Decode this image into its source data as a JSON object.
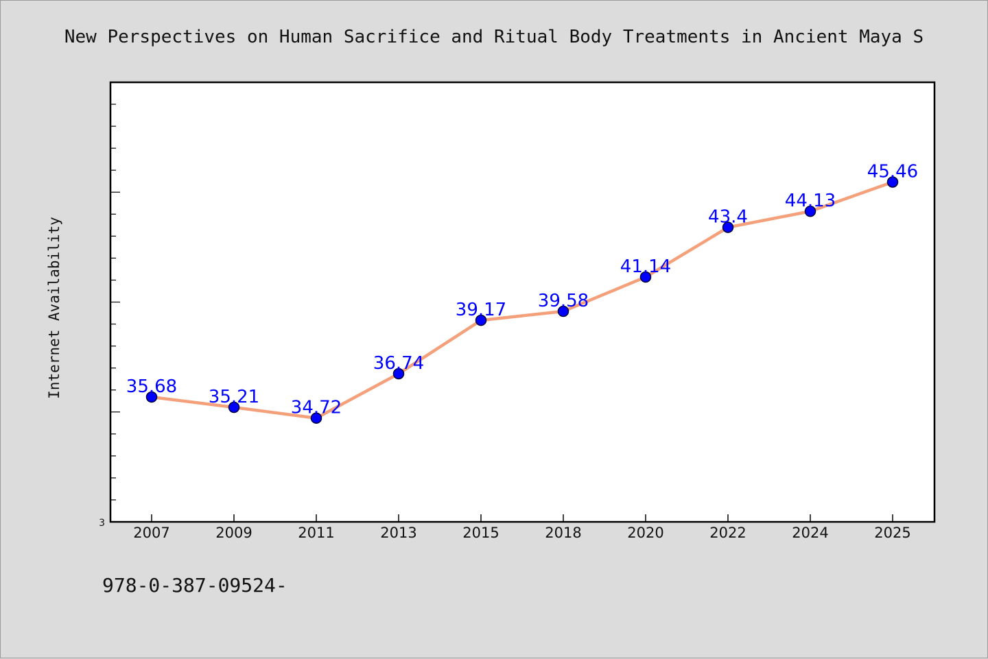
{
  "chart_data": {
    "type": "line",
    "title": "New Perspectives on Human Sacrifice and Ritual Body Treatments in Ancient Maya S",
    "ylabel": "Internet Availability",
    "xlabel": "",
    "categories": [
      "2007",
      "2009",
      "2011",
      "2013",
      "2015",
      "2018",
      "2020",
      "2022",
      "2024",
      "2025"
    ],
    "series": [
      {
        "values": [
          35.68,
          35.21,
          34.72,
          36.74,
          39.17,
          39.58,
          41.14,
          43.4,
          44.13,
          45.46
        ],
        "labels": [
          "35.68",
          "35.21",
          "34.72",
          "36.74",
          "39.17",
          "39.58",
          "41.14",
          "43.4",
          "44.13",
          "45.46"
        ]
      }
    ],
    "ylim": [
      30,
      50
    ],
    "y_tick_label": "3",
    "grid": false,
    "line_color": "#f4a07a",
    "marker_color": "#0000ff",
    "label_color": "#0000ff"
  },
  "footer": {
    "text": "978-0-387-09524-"
  }
}
